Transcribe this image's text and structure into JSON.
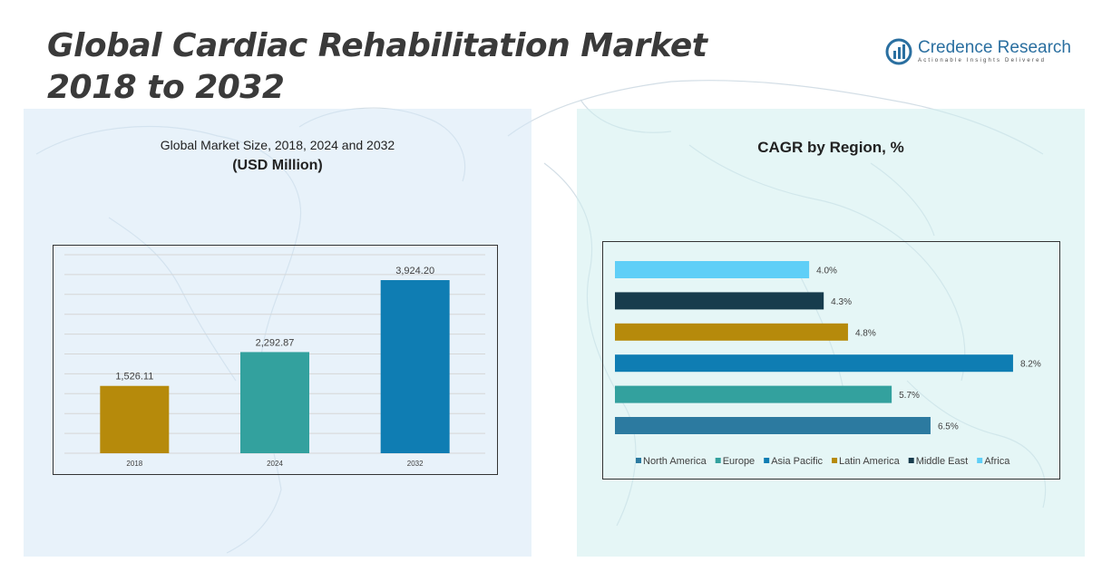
{
  "title": "Global Cardiac Rehabilitation Market 2018 to 2032",
  "logo": {
    "name": "Credence Research",
    "tagline": "Actionable Insights Delivered"
  },
  "colors": {
    "left_panel_bg": "#d6e8f6",
    "right_panel_bg": "#d0eeee",
    "map_line": "#c9d7e0"
  },
  "chart_data": [
    {
      "type": "bar",
      "title": "Global Market Size, 2018, 2024 and 2032",
      "subtitle": "(USD Million)",
      "categories": [
        "2018",
        "2024",
        "2032"
      ],
      "values": [
        1526.11,
        2292.87,
        3924.2
      ],
      "value_labels": [
        "1,526.11",
        "2,292.87",
        "3,924.20"
      ],
      "colors": [
        "#b68a0b",
        "#33a19e",
        "#0f7db3"
      ],
      "ylim": [
        0,
        4500
      ],
      "grid": true,
      "legend": "none"
    },
    {
      "type": "bar",
      "orientation": "horizontal",
      "title": "CAGR by Region, %",
      "categories": [
        "Africa",
        "Middle East",
        "Latin America",
        "Asia Pacific",
        "Europe",
        "North America"
      ],
      "values": [
        4.0,
        4.3,
        4.8,
        8.2,
        5.7,
        6.5
      ],
      "value_labels": [
        "4.0%",
        "4.3%",
        "4.8%",
        "8.2%",
        "5.7%",
        "6.5%"
      ],
      "colors": [
        "#5fcff7",
        "#173c4d",
        "#b68a0b",
        "#0f7db3",
        "#33a19e",
        "#2c7aa0"
      ],
      "legend_order": [
        "North America",
        "Europe",
        "Asia Pacific",
        "Latin America",
        "Middle East",
        "Africa"
      ],
      "legend_colors": [
        "#2c7aa0",
        "#33a19e",
        "#0f7db3",
        "#b68a0b",
        "#173c4d",
        "#5fcff7"
      ],
      "legend": "bottom",
      "xlim": [
        0,
        8.5
      ]
    }
  ]
}
